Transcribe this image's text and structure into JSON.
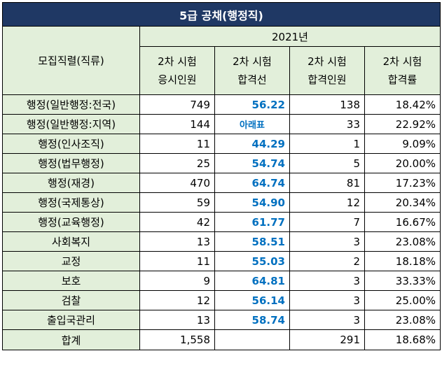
{
  "title": "5급 공채(행정직)",
  "header": {
    "category_label": "모집직렬(직류)",
    "year": "2021년",
    "col1": [
      "2차 시험",
      "응시인원"
    ],
    "col2": [
      "2차 시험",
      "합격선"
    ],
    "col3": [
      "2차 시험",
      "합격인원"
    ],
    "col4": [
      "2차 시험",
      "합격률"
    ]
  },
  "rows": [
    {
      "category": "행정(일반행정:전국)",
      "applicants": "749",
      "cutoff": "56.22",
      "passed": "138",
      "rate": "18.42%"
    },
    {
      "category": "행정(일반행정:지역)",
      "applicants": "144",
      "cutoff": "아래표",
      "passed": "33",
      "rate": "22.92%"
    },
    {
      "category": "행정(인사조직)",
      "applicants": "11",
      "cutoff": "44.29",
      "passed": "1",
      "rate": "9.09%"
    },
    {
      "category": "행정(법무행정)",
      "applicants": "25",
      "cutoff": "54.74",
      "passed": "5",
      "rate": "20.00%"
    },
    {
      "category": "행정(재경)",
      "applicants": "470",
      "cutoff": "64.74",
      "passed": "81",
      "rate": "17.23%"
    },
    {
      "category": "행정(국제통상)",
      "applicants": "59",
      "cutoff": "54.90",
      "passed": "12",
      "rate": "20.34%"
    },
    {
      "category": "행정(교육행정)",
      "applicants": "42",
      "cutoff": "61.77",
      "passed": "7",
      "rate": "16.67%"
    },
    {
      "category": "사회복지",
      "applicants": "13",
      "cutoff": "58.51",
      "passed": "3",
      "rate": "23.08%"
    },
    {
      "category": "교정",
      "applicants": "11",
      "cutoff": "55.03",
      "passed": "2",
      "rate": "18.18%"
    },
    {
      "category": "보호",
      "applicants": "9",
      "cutoff": "64.81",
      "passed": "3",
      "rate": "33.33%"
    },
    {
      "category": "검찰",
      "applicants": "12",
      "cutoff": "56.14",
      "passed": "3",
      "rate": "25.00%"
    },
    {
      "category": "출입국관리",
      "applicants": "13",
      "cutoff": "58.74",
      "passed": "3",
      "rate": "23.08%"
    }
  ],
  "total": {
    "category": "합계",
    "applicants": "1,558",
    "cutoff": "",
    "passed": "291",
    "rate": "18.68%"
  },
  "colors": {
    "title_bg": "#1f3864",
    "header_bg": "#e2efda",
    "accent_blue": "#0070c0"
  }
}
